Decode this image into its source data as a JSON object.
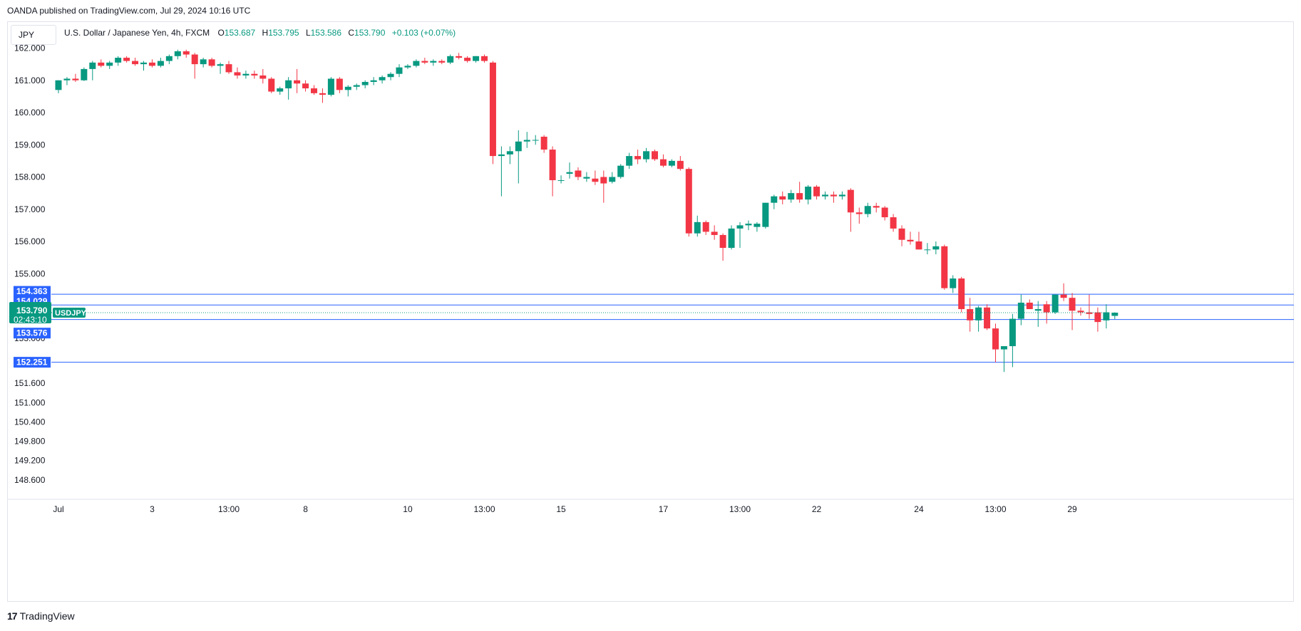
{
  "header": {
    "published": "OANDA published on TradingView.com, Jul 29, 2024 10:16 UTC"
  },
  "currency_label": "JPY",
  "legend": {
    "symbol": "U.S. Dollar / Japanese Yen, 4h, FXCM",
    "open_label": "O",
    "open": "153.687",
    "high_label": "H",
    "high": "153.795",
    "low_label": "L",
    "low": "153.586",
    "close_label": "C",
    "close": "153.790",
    "change": "+0.103 (+0.07%)"
  },
  "price_tag": {
    "price": "153.790",
    "countdown": "02:43:10",
    "symbol": "USDJPY"
  },
  "hlines": [
    {
      "value": 154.363,
      "label": "154.363"
    },
    {
      "value": 154.029,
      "label": "154.029"
    },
    {
      "value": 153.576,
      "label": "153.576"
    },
    {
      "value": 152.251,
      "label": "152.251"
    }
  ],
  "colors": {
    "up": "#089981",
    "down": "#f23645",
    "hline": "#2962ff",
    "grid": "#f0f3fa",
    "text": "#131722"
  },
  "footer": {
    "brand": "TradingView",
    "logo_mark": "17"
  },
  "chart_data": {
    "type": "candlestick",
    "symbol": "USDJPY",
    "timeframe": "4h",
    "ylim": [
      148.4,
      162.3
    ],
    "y_ticks": [
      "162.000",
      "161.000",
      "160.000",
      "159.000",
      "158.000",
      "157.000",
      "156.000",
      "155.000",
      "154.000",
      "153.000",
      "151.600",
      "151.000",
      "150.400",
      "149.800",
      "149.200",
      "148.600"
    ],
    "x_ticks": [
      {
        "label": "Jul",
        "index": 0
      },
      {
        "label": "3",
        "index": 11
      },
      {
        "label": "13:00",
        "index": 20
      },
      {
        "label": "8",
        "index": 29
      },
      {
        "label": "10",
        "index": 41
      },
      {
        "label": "13:00",
        "index": 50
      },
      {
        "label": "15",
        "index": 59
      },
      {
        "label": "17",
        "index": 71
      },
      {
        "label": "13:00",
        "index": 80
      },
      {
        "label": "22",
        "index": 89
      },
      {
        "label": "24",
        "index": 101
      },
      {
        "label": "13:00",
        "index": 110
      },
      {
        "label": "29",
        "index": 119
      }
    ],
    "candles": [
      [
        160.7,
        161.0,
        160.6,
        161.0
      ],
      [
        161.0,
        161.1,
        160.85,
        161.05
      ],
      [
        161.05,
        161.2,
        160.95,
        161.0
      ],
      [
        161.0,
        161.4,
        160.98,
        161.35
      ],
      [
        161.35,
        161.6,
        161.0,
        161.55
      ],
      [
        161.55,
        161.65,
        161.4,
        161.45
      ],
      [
        161.45,
        161.6,
        161.35,
        161.55
      ],
      [
        161.55,
        161.75,
        161.45,
        161.7
      ],
      [
        161.7,
        161.75,
        161.55,
        161.6
      ],
      [
        161.6,
        161.7,
        161.45,
        161.5
      ],
      [
        161.5,
        161.6,
        161.3,
        161.55
      ],
      [
        161.55,
        161.65,
        161.4,
        161.45
      ],
      [
        161.45,
        161.7,
        161.4,
        161.6
      ],
      [
        161.6,
        161.8,
        161.5,
        161.75
      ],
      [
        161.75,
        161.95,
        161.65,
        161.9
      ],
      [
        161.9,
        161.95,
        161.7,
        161.8
      ],
      [
        161.8,
        161.85,
        161.05,
        161.5
      ],
      [
        161.5,
        161.7,
        161.4,
        161.65
      ],
      [
        161.65,
        161.7,
        161.4,
        161.45
      ],
      [
        161.45,
        161.55,
        161.2,
        161.5
      ],
      [
        161.5,
        161.6,
        161.2,
        161.25
      ],
      [
        161.25,
        161.4,
        161.05,
        161.15
      ],
      [
        161.15,
        161.3,
        161.05,
        161.2
      ],
      [
        161.2,
        161.3,
        161.05,
        161.15
      ],
      [
        161.15,
        161.35,
        160.9,
        161.05
      ],
      [
        161.05,
        161.1,
        160.6,
        160.65
      ],
      [
        160.65,
        160.8,
        160.55,
        160.75
      ],
      [
        160.75,
        161.1,
        160.4,
        161.0
      ],
      [
        161.0,
        161.35,
        160.6,
        160.9
      ],
      [
        160.9,
        161.0,
        160.65,
        160.75
      ],
      [
        160.75,
        160.85,
        160.55,
        160.6
      ],
      [
        160.6,
        160.75,
        160.3,
        160.55
      ],
      [
        160.55,
        161.1,
        160.5,
        161.05
      ],
      [
        161.05,
        161.1,
        160.6,
        160.7
      ],
      [
        160.7,
        160.85,
        160.5,
        160.8
      ],
      [
        160.8,
        160.9,
        160.7,
        160.85
      ],
      [
        160.85,
        161.0,
        160.75,
        160.95
      ],
      [
        160.95,
        161.1,
        160.85,
        161.0
      ],
      [
        161.0,
        161.15,
        160.9,
        161.1
      ],
      [
        161.1,
        161.25,
        161.0,
        161.2
      ],
      [
        161.2,
        161.5,
        161.1,
        161.4
      ],
      [
        161.4,
        161.5,
        161.35,
        161.45
      ],
      [
        161.45,
        161.65,
        161.4,
        161.6
      ],
      [
        161.6,
        161.7,
        161.5,
        161.55
      ],
      [
        161.55,
        161.65,
        161.45,
        161.6
      ],
      [
        161.6,
        161.65,
        161.5,
        161.55
      ],
      [
        161.55,
        161.8,
        161.5,
        161.75
      ],
      [
        161.75,
        161.85,
        161.65,
        161.7
      ],
      [
        161.7,
        161.75,
        161.55,
        161.6
      ],
      [
        161.6,
        161.75,
        161.55,
        161.75
      ],
      [
        161.75,
        161.8,
        161.55,
        161.6
      ],
      [
        161.55,
        161.6,
        158.4,
        158.65
      ],
      [
        158.65,
        158.95,
        157.4,
        158.7
      ],
      [
        158.7,
        158.95,
        158.4,
        158.8
      ],
      [
        158.8,
        159.45,
        157.8,
        159.1
      ],
      [
        159.1,
        159.4,
        158.9,
        159.15
      ],
      [
        159.15,
        159.3,
        159.0,
        159.15
      ],
      [
        159.25,
        159.3,
        158.75,
        158.85
      ],
      [
        158.85,
        158.95,
        157.4,
        157.9
      ],
      [
        157.9,
        158.05,
        157.8,
        157.9
      ],
      [
        158.1,
        158.45,
        157.95,
        158.15
      ],
      [
        158.2,
        158.3,
        157.9,
        158.0
      ],
      [
        157.95,
        158.15,
        157.85,
        158.0
      ],
      [
        157.95,
        158.2,
        157.75,
        157.85
      ],
      [
        158.0,
        158.2,
        157.2,
        157.8
      ],
      [
        157.85,
        158.15,
        157.8,
        158.0
      ],
      [
        158.0,
        158.4,
        157.95,
        158.35
      ],
      [
        158.35,
        158.75,
        158.25,
        158.65
      ],
      [
        158.65,
        158.85,
        158.4,
        158.55
      ],
      [
        158.55,
        158.9,
        158.45,
        158.8
      ],
      [
        158.8,
        158.85,
        158.5,
        158.55
      ],
      [
        158.55,
        158.7,
        158.3,
        158.35
      ],
      [
        158.35,
        158.55,
        158.3,
        158.5
      ],
      [
        158.5,
        158.65,
        158.2,
        158.25
      ],
      [
        158.25,
        158.3,
        156.15,
        156.25
      ],
      [
        156.25,
        156.8,
        156.15,
        156.6
      ],
      [
        156.6,
        156.65,
        156.2,
        156.3
      ],
      [
        156.3,
        156.5,
        156.05,
        156.2
      ],
      [
        156.2,
        156.25,
        155.4,
        155.8
      ],
      [
        155.8,
        156.5,
        155.75,
        156.4
      ],
      [
        156.4,
        156.6,
        155.8,
        156.5
      ],
      [
        156.5,
        156.65,
        156.35,
        156.55
      ],
      [
        156.45,
        156.6,
        156.3,
        156.55
      ],
      [
        156.45,
        157.2,
        156.4,
        157.2
      ],
      [
        157.2,
        157.45,
        157.0,
        157.4
      ],
      [
        157.4,
        157.55,
        157.15,
        157.3
      ],
      [
        157.3,
        157.6,
        157.2,
        157.5
      ],
      [
        157.5,
        157.85,
        157.2,
        157.3
      ],
      [
        157.3,
        157.75,
        157.15,
        157.7
      ],
      [
        157.7,
        157.75,
        157.3,
        157.4
      ],
      [
        157.4,
        157.55,
        157.3,
        157.45
      ],
      [
        157.45,
        157.55,
        157.2,
        157.4
      ],
      [
        157.4,
        157.55,
        157.3,
        157.45
      ],
      [
        157.6,
        157.65,
        156.3,
        156.9
      ],
      [
        156.9,
        157.05,
        156.55,
        156.85
      ],
      [
        156.85,
        157.2,
        156.75,
        157.1
      ],
      [
        157.1,
        157.2,
        156.9,
        157.05
      ],
      [
        157.05,
        157.1,
        156.65,
        156.75
      ],
      [
        156.75,
        156.85,
        156.3,
        156.4
      ],
      [
        156.4,
        156.5,
        155.85,
        156.05
      ],
      [
        156.05,
        156.3,
        155.9,
        156.0
      ],
      [
        156.0,
        156.3,
        155.75,
        155.75
      ],
      [
        155.75,
        155.95,
        155.6,
        155.75
      ],
      [
        155.75,
        156.0,
        155.6,
        155.85
      ],
      [
        155.85,
        155.9,
        154.5,
        154.55
      ],
      [
        154.55,
        154.95,
        154.4,
        154.85
      ],
      [
        154.85,
        154.9,
        153.8,
        153.9
      ],
      [
        153.9,
        154.25,
        153.2,
        153.55
      ],
      [
        153.55,
        154.0,
        153.2,
        153.95
      ],
      [
        153.95,
        154.05,
        153.25,
        153.3
      ],
      [
        153.3,
        153.45,
        152.25,
        152.65
      ],
      [
        152.65,
        152.75,
        151.95,
        152.75
      ],
      [
        152.75,
        153.75,
        152.1,
        153.6
      ],
      [
        153.6,
        154.35,
        153.4,
        154.1
      ],
      [
        154.1,
        154.2,
        153.9,
        153.9
      ],
      [
        153.85,
        154.15,
        153.35,
        153.9
      ],
      [
        154.05,
        154.15,
        153.45,
        153.8
      ],
      [
        153.8,
        154.35,
        153.75,
        154.35
      ],
      [
        154.35,
        154.7,
        154.15,
        154.25
      ],
      [
        154.25,
        154.4,
        153.25,
        153.85
      ],
      [
        153.85,
        153.95,
        153.7,
        153.8
      ],
      [
        153.8,
        154.35,
        153.6,
        153.75
      ],
      [
        153.8,
        153.95,
        153.2,
        153.5
      ],
      [
        153.55,
        154.05,
        153.3,
        153.8
      ],
      [
        153.69,
        153.8,
        153.59,
        153.79
      ]
    ]
  }
}
